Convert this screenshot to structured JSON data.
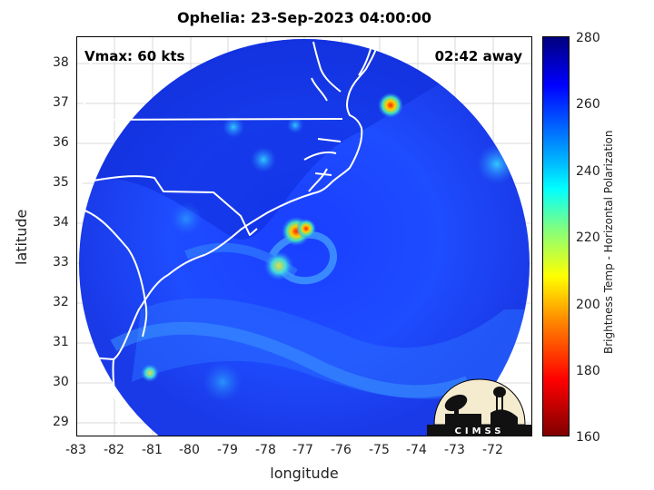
{
  "title": "Ophelia: 23-Sep-2023 04:00:00",
  "vmax_text": "Vmax: 60 kts",
  "time_away_text": "02:42 away",
  "axes": {
    "xlabel": "longitude",
    "ylabel": "latitude",
    "xticks": [
      "-83",
      "-82",
      "-81",
      "-80",
      "-79",
      "-78",
      "-77",
      "-76",
      "-75",
      "-74",
      "-73",
      "-72"
    ],
    "yticks": [
      "38",
      "37",
      "36",
      "35",
      "34",
      "33",
      "32",
      "31",
      "30",
      "29"
    ]
  },
  "colorbar": {
    "title": "Brightness Temp - Horizontal Polarization",
    "ticks": [
      "280",
      "260",
      "240",
      "220",
      "200",
      "180",
      "160"
    ],
    "colors": [
      "#00007f",
      "#0000ff",
      "#00bfff",
      "#00ffff",
      "#ffff00",
      "#ff0000",
      "#800000"
    ]
  },
  "logo_text": "CIMSS",
  "storm_center": {
    "lon": -77.1,
    "lat": 33.8
  }
}
